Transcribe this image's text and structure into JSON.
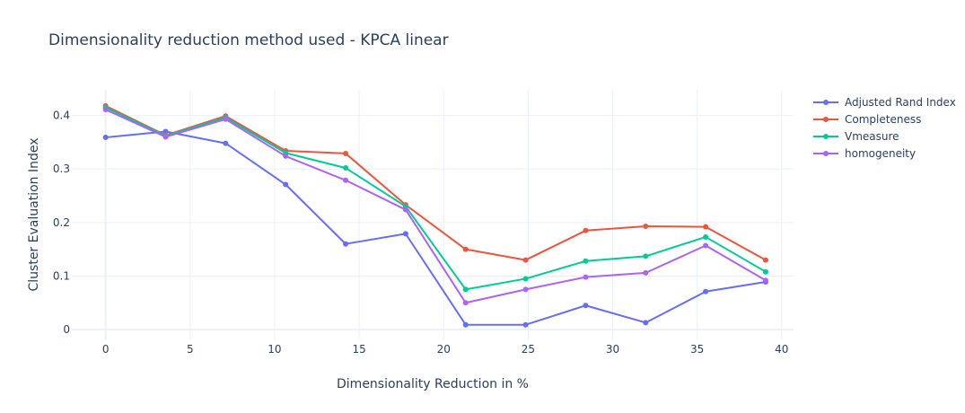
{
  "chart_data": {
    "type": "line",
    "title": "Dimensionality reduction method used - KPCA linear",
    "xlabel": "Dimensionality Reduction in %",
    "ylabel": "Cluster Evaluation Index",
    "xlim": [
      -2,
      40.7
    ],
    "ylim": [
      -0.02,
      0.448
    ],
    "x_ticks": [
      0,
      5,
      10,
      15,
      20,
      25,
      30,
      35,
      40
    ],
    "y_ticks": [
      0,
      0.1,
      0.2,
      0.3,
      0.4
    ],
    "y_tick_labels": [
      "0",
      "0.1",
      "0.2",
      "0.3",
      "0.4"
    ],
    "grid": true,
    "legend_position": "top-right",
    "x": [
      0,
      3.55,
      7.1,
      10.65,
      14.2,
      17.75,
      21.3,
      24.85,
      28.4,
      31.95,
      35.5,
      39.05
    ],
    "series": [
      {
        "name": "Adjusted Rand Index",
        "color": "#636efa",
        "values": [
          0.359,
          0.37,
          0.348,
          0.271,
          0.16,
          0.179,
          0.009,
          0.009,
          0.045,
          0.013,
          0.071,
          0.089
        ]
      },
      {
        "name": "Completeness",
        "color": "#EF553B",
        "values": [
          0.418,
          0.363,
          0.399,
          0.334,
          0.329,
          0.233,
          0.15,
          0.13,
          0.185,
          0.193,
          0.192,
          0.13
        ]
      },
      {
        "name": "Vmeasure",
        "color": "#00cc96",
        "values": [
          0.415,
          0.362,
          0.396,
          0.33,
          0.302,
          0.23,
          0.075,
          0.095,
          0.128,
          0.137,
          0.173,
          0.108
        ]
      },
      {
        "name": "homogeneity",
        "color": "#ab63fa",
        "values": [
          0.411,
          0.36,
          0.393,
          0.324,
          0.279,
          0.224,
          0.05,
          0.075,
          0.098,
          0.106,
          0.157,
          0.092
        ]
      }
    ]
  }
}
